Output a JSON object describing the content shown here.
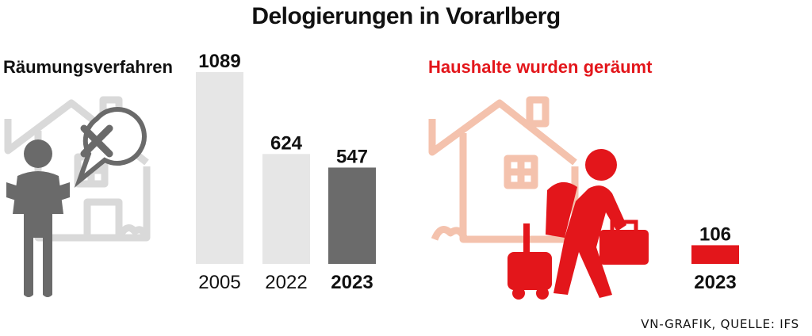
{
  "title": "Delogierungen in Vorarlberg",
  "source": "VN-GRAFIK, QUELLE: IFS",
  "colors": {
    "light_bar": "#e6e6e6",
    "dark_bar": "#6b6b6b",
    "accent_red": "#e3161b",
    "icon_gray": "#6a6a6a",
    "house_gray": "#d9d9d9",
    "house_peach": "#f4c2ad"
  },
  "chart_data": [
    {
      "type": "bar",
      "title": "Räumungsverfahren",
      "categories": [
        "2005",
        "2022",
        "2023"
      ],
      "values": [
        1089,
        624,
        547
      ],
      "highlight_category": "2023",
      "ylim": [
        0,
        1089
      ]
    },
    {
      "type": "bar",
      "title": "Haushalte wurden geräumt",
      "categories": [
        "2023"
      ],
      "values": [
        106
      ],
      "ylim": [
        0,
        1089
      ]
    }
  ]
}
